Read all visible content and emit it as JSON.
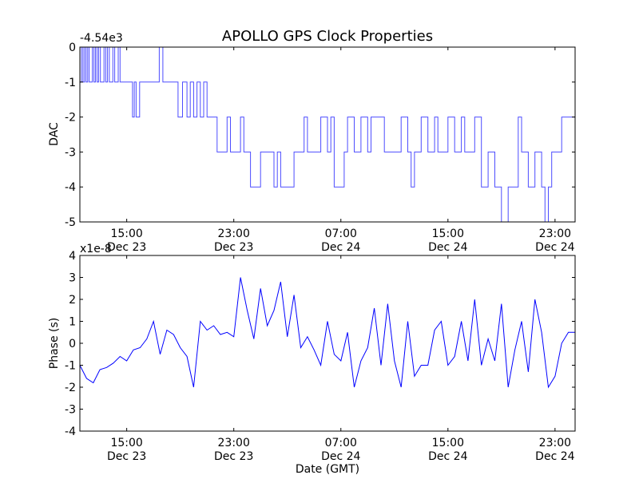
{
  "figure": {
    "title": "APOLLO GPS Clock Properties",
    "xlabel": "Date (GMT)"
  },
  "colors": {
    "background": "#ffffff",
    "axes_frame": "#000000",
    "line": "#0000ff",
    "dac_line": "#4d4dff"
  },
  "chart_data": [
    {
      "type": "line",
      "name": "dac-panel",
      "ylabel": "DAC",
      "offset_text": "-4.54e3",
      "ylim": [
        -5,
        0
      ],
      "yticks": [
        "0",
        "-1",
        "-2",
        "-3",
        "-4",
        "-5"
      ],
      "ytick_values": [
        0,
        -1,
        -2,
        -3,
        -4,
        -5
      ],
      "xlim": [
        "2011-12-23 11:30",
        "2011-12-25 00:30"
      ],
      "xtick_values": [
        "2011-12-23 15:00",
        "2011-12-23 23:00",
        "2011-12-24 07:00",
        "2011-12-24 15:00",
        "2011-12-24 23:00"
      ],
      "xtick_times": [
        "15:00",
        "23:00",
        "07:00",
        "15:00",
        "23:00"
      ],
      "xtick_dates": [
        "Dec 23",
        "Dec 23",
        "Dec 24",
        "Dec 24",
        "Dec 24"
      ],
      "grid": false,
      "series": [
        {
          "x": [
            "2011-12-23 11:30",
            "2011-12-23 11:37",
            "2011-12-23 11:44",
            "2011-12-23 11:51",
            "2011-12-23 11:58",
            "2011-12-23 12:05",
            "2011-12-23 12:12",
            "2011-12-23 12:19",
            "2011-12-23 12:26",
            "2011-12-23 12:33",
            "2011-12-23 12:40",
            "2011-12-23 12:47",
            "2011-12-23 12:54",
            "2011-12-23 13:02",
            "2011-12-23 13:10",
            "2011-12-23 13:18",
            "2011-12-23 13:26",
            "2011-12-23 13:34",
            "2011-12-23 13:42",
            "2011-12-23 13:50",
            "2011-12-23 13:58",
            "2011-12-23 14:06",
            "2011-12-23 14:14",
            "2011-12-23 14:22",
            "2011-12-23 14:30",
            "2011-12-23 14:38",
            "2011-12-23 14:46",
            "2011-12-23 14:54",
            "2011-12-23 15:02",
            "2011-12-23 15:10",
            "2011-12-23 15:18",
            "2011-12-23 15:26",
            "2011-12-23 15:34",
            "2011-12-23 15:42",
            "2011-12-23 15:50",
            "2011-12-23 15:58",
            "2011-12-23 16:06",
            "2011-12-23 16:14",
            "2011-12-23 16:22",
            "2011-12-23 16:30",
            "2011-12-23 16:38",
            "2011-12-23 16:46",
            "2011-12-23 16:54",
            "2011-12-23 17:02",
            "2011-12-23 17:10",
            "2011-12-23 17:18",
            "2011-12-23 17:26",
            "2011-12-23 17:34",
            "2011-12-23 17:42",
            "2011-12-23 17:50",
            "2011-12-23 18:10",
            "2011-12-23 18:30",
            "2011-12-23 18:50",
            "2011-12-23 19:10",
            "2011-12-23 19:30",
            "2011-12-23 19:45",
            "2011-12-23 20:00",
            "2011-12-23 20:15",
            "2011-12-23 20:30",
            "2011-12-23 20:45",
            "2011-12-23 21:00",
            "2011-12-23 21:15",
            "2011-12-23 21:30",
            "2011-12-23 21:45",
            "2011-12-23 22:00",
            "2011-12-23 22:15",
            "2011-12-23 22:30",
            "2011-12-23 22:45",
            "2011-12-23 23:00",
            "2011-12-23 23:15",
            "2011-12-23 23:30",
            "2011-12-23 23:45",
            "2011-12-24 00:00",
            "2011-12-24 00:15",
            "2011-12-24 00:30",
            "2011-12-24 00:45",
            "2011-12-24 01:00",
            "2011-12-24 01:30",
            "2011-12-24 02:00",
            "2011-12-24 02:15",
            "2011-12-24 02:30",
            "2011-12-24 03:00",
            "2011-12-24 03:30",
            "2011-12-24 04:00",
            "2011-12-24 04:15",
            "2011-12-24 04:30",
            "2011-12-24 05:00",
            "2011-12-24 05:30",
            "2011-12-24 06:00",
            "2011-12-24 06:15",
            "2011-12-24 06:30",
            "2011-12-24 07:00",
            "2011-12-24 07:15",
            "2011-12-24 07:30",
            "2011-12-24 08:00",
            "2011-12-24 08:30",
            "2011-12-24 09:00",
            "2011-12-24 09:15",
            "2011-12-24 09:30",
            "2011-12-24 10:00",
            "2011-12-24 10:15",
            "2011-12-24 10:30",
            "2011-12-24 11:00",
            "2011-12-24 11:30",
            "2011-12-24 12:00",
            "2011-12-24 12:15",
            "2011-12-24 12:30",
            "2011-12-24 13:00",
            "2011-12-24 13:30",
            "2011-12-24 14:00",
            "2011-12-24 14:15",
            "2011-12-24 14:30",
            "2011-12-24 15:00",
            "2011-12-24 15:30",
            "2011-12-24 16:00",
            "2011-12-24 16:15",
            "2011-12-24 16:30",
            "2011-12-24 17:00",
            "2011-12-24 17:30",
            "2011-12-24 17:45",
            "2011-12-24 18:00",
            "2011-12-24 18:30",
            "2011-12-24 19:00",
            "2011-12-24 19:30",
            "2011-12-24 20:00",
            "2011-12-24 20:15",
            "2011-12-24 20:30",
            "2011-12-24 20:45",
            "2011-12-24 21:00",
            "2011-12-24 21:30",
            "2011-12-24 22:00",
            "2011-12-24 22:15",
            "2011-12-24 22:30",
            "2011-12-24 22:45",
            "2011-12-24 23:00",
            "2011-12-24 23:30",
            "2011-12-25 00:00",
            "2011-12-25 00:30"
          ],
          "y": [
            -1,
            0,
            -1,
            0,
            -1,
            0,
            -1,
            -1,
            0,
            -1,
            0,
            -1,
            0,
            -1,
            -1,
            0,
            -1,
            0,
            -1,
            -1,
            0,
            -1,
            -1,
            0,
            -1,
            -1,
            -1,
            -1,
            -1,
            -1,
            -1,
            -2,
            -1,
            -2,
            -2,
            -1,
            -1,
            -1,
            -1,
            -1,
            -1,
            -1,
            -1,
            -1,
            -1,
            -1,
            0,
            0,
            -1,
            -1,
            -1,
            -1,
            -2,
            -1,
            -2,
            -1,
            -2,
            -1,
            -2,
            -1,
            -2,
            -2,
            -2,
            -3,
            -3,
            -3,
            -2,
            -3,
            -3,
            -3,
            -2,
            -3,
            -3,
            -4,
            -4,
            -4,
            -3,
            -3,
            -4,
            -3,
            -4,
            -4,
            -3,
            -3,
            -2,
            -3,
            -3,
            -2,
            -3,
            -2,
            -4,
            -4,
            -3,
            -2,
            -3,
            -2,
            -3,
            -2,
            -2,
            -2,
            -3,
            -3,
            -3,
            -2,
            -3,
            -4,
            -3,
            -2,
            -3,
            -2,
            -3,
            -3,
            -2,
            -3,
            -2,
            -3,
            -3,
            -2,
            -4,
            -4,
            -3,
            -4,
            -5,
            -4,
            -4,
            -2,
            -3,
            -3,
            -4,
            -3,
            -4,
            -5,
            -4,
            -3,
            -3,
            -2,
            -2,
            -3
          ]
        }
      ]
    },
    {
      "type": "line",
      "name": "phase-panel",
      "ylabel": "Phase (s)",
      "offset_text": "x1e-8",
      "ylim": [
        -4,
        4
      ],
      "yticks": [
        "4",
        "3",
        "2",
        "1",
        "0",
        "-1",
        "-2",
        "-3",
        "-4"
      ],
      "ytick_values": [
        4,
        3,
        2,
        1,
        0,
        -1,
        -2,
        -3,
        -4
      ],
      "xlim": [
        "2011-12-23 11:30",
        "2011-12-25 00:30"
      ],
      "xtick_values": [
        "2011-12-23 15:00",
        "2011-12-23 23:00",
        "2011-12-24 07:00",
        "2011-12-24 15:00",
        "2011-12-24 23:00"
      ],
      "xtick_times": [
        "15:00",
        "23:00",
        "07:00",
        "15:00",
        "23:00"
      ],
      "xtick_dates": [
        "Dec 23",
        "Dec 23",
        "Dec 24",
        "Dec 24",
        "Dec 24"
      ],
      "grid": false,
      "series": [
        {
          "x": [
            "2011-12-23 11:30",
            "2011-12-23 12:00",
            "2011-12-23 12:30",
            "2011-12-23 13:00",
            "2011-12-23 13:30",
            "2011-12-23 14:00",
            "2011-12-23 14:30",
            "2011-12-23 15:00",
            "2011-12-23 15:30",
            "2011-12-23 16:00",
            "2011-12-23 16:30",
            "2011-12-23 17:00",
            "2011-12-23 17:30",
            "2011-12-23 18:00",
            "2011-12-23 18:30",
            "2011-12-23 19:00",
            "2011-12-23 19:30",
            "2011-12-23 20:00",
            "2011-12-23 20:30",
            "2011-12-23 21:00",
            "2011-12-23 21:30",
            "2011-12-23 22:00",
            "2011-12-23 22:30",
            "2011-12-23 23:00",
            "2011-12-23 23:30",
            "2011-12-24 00:00",
            "2011-12-24 00:30",
            "2011-12-24 01:00",
            "2011-12-24 01:30",
            "2011-12-24 02:00",
            "2011-12-24 02:30",
            "2011-12-24 03:00",
            "2011-12-24 03:30",
            "2011-12-24 04:00",
            "2011-12-24 04:30",
            "2011-12-24 05:00",
            "2011-12-24 05:30",
            "2011-12-24 06:00",
            "2011-12-24 06:30",
            "2011-12-24 07:00",
            "2011-12-24 07:30",
            "2011-12-24 08:00",
            "2011-12-24 08:30",
            "2011-12-24 09:00",
            "2011-12-24 09:30",
            "2011-12-24 10:00",
            "2011-12-24 10:30",
            "2011-12-24 11:00",
            "2011-12-24 11:30",
            "2011-12-24 12:00",
            "2011-12-24 12:30",
            "2011-12-24 13:00",
            "2011-12-24 13:30",
            "2011-12-24 14:00",
            "2011-12-24 14:30",
            "2011-12-24 15:00",
            "2011-12-24 15:30",
            "2011-12-24 16:00",
            "2011-12-24 16:30",
            "2011-12-24 17:00",
            "2011-12-24 17:30",
            "2011-12-24 18:00",
            "2011-12-24 18:30",
            "2011-12-24 19:00",
            "2011-12-24 19:30",
            "2011-12-24 20:00",
            "2011-12-24 20:30",
            "2011-12-24 21:00",
            "2011-12-24 21:30",
            "2011-12-24 22:00",
            "2011-12-24 22:30",
            "2011-12-24 23:00",
            "2011-12-24 23:30",
            "2011-12-25 00:00",
            "2011-12-25 00:30"
          ],
          "y": [
            -1.0,
            -1.6,
            -1.8,
            -1.2,
            -1.1,
            -0.9,
            -0.6,
            -0.8,
            -0.3,
            -0.2,
            0.2,
            1.0,
            -0.5,
            0.6,
            0.4,
            -0.2,
            -0.6,
            -2.0,
            1.0,
            0.6,
            0.8,
            0.4,
            0.5,
            0.3,
            3.0,
            1.5,
            0.2,
            2.5,
            0.8,
            1.5,
            2.8,
            0.3,
            2.2,
            -0.2,
            0.3,
            -0.3,
            -1.0,
            1.0,
            -0.5,
            -0.8,
            0.5,
            -2.0,
            -0.8,
            -0.2,
            1.6,
            -1.0,
            1.8,
            -0.8,
            -2.0,
            1.0,
            -1.5,
            -1.0,
            -1.0,
            0.6,
            1.0,
            -1.0,
            -0.6,
            1.0,
            -0.8,
            2.0,
            -1.0,
            0.2,
            -0.8,
            1.8,
            -2.0,
            -0.3,
            1.0,
            -1.3,
            2.0,
            0.5,
            -2.0,
            -1.5,
            0.0,
            0.5,
            0.5
          ]
        }
      ]
    }
  ]
}
